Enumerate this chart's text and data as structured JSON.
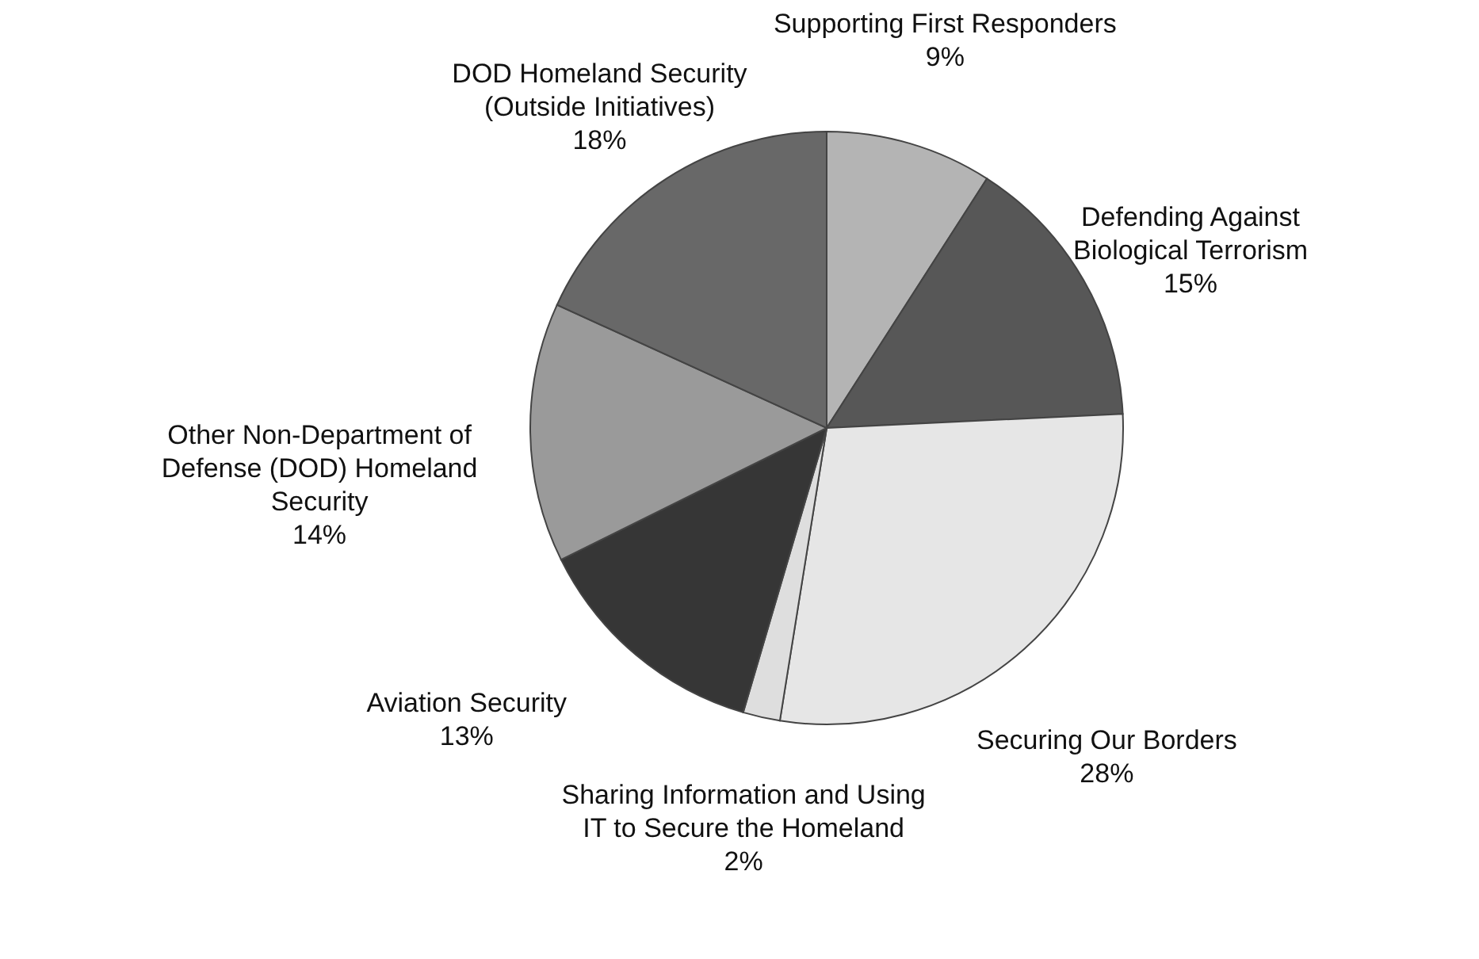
{
  "chart_data": {
    "type": "pie",
    "categories": [
      "Supporting First Responders",
      "Defending Against\nBiological Terrorism",
      "Securing Our Borders",
      "Sharing Information and Using\nIT to Secure the Homeland",
      "Aviation Security",
      "Other Non-Department of\nDefense (DOD) Homeland\nSecurity",
      "DOD Homeland Security\n(Outside Initiatives)"
    ],
    "values": [
      9,
      15,
      28,
      2,
      13,
      14,
      18
    ],
    "value_labels": [
      "9%",
      "15%",
      "28%",
      "2%",
      "13%",
      "14%",
      "18%"
    ],
    "colors": [
      "#b4b4b4",
      "#575757",
      "#e6e6e6",
      "#dedede",
      "#363636",
      "#9a9a9a",
      "#686868"
    ]
  }
}
